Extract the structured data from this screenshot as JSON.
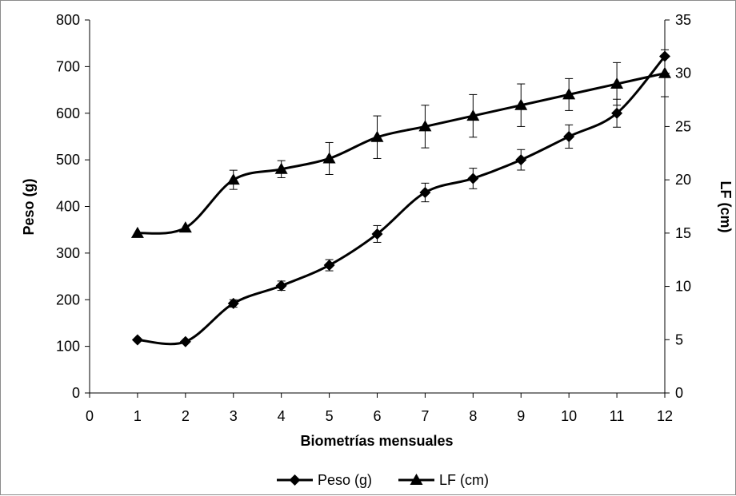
{
  "chart_data": {
    "type": "line",
    "xlabel": "Biometrías mensuales",
    "ylabel": "Peso (g)",
    "y2label": "LF (cm)",
    "xlim": [
      0,
      12
    ],
    "ylim": [
      0,
      800
    ],
    "y2lim": [
      0,
      35
    ],
    "x_ticks": [
      "0",
      "1",
      "2",
      "3",
      "4",
      "5",
      "6",
      "7",
      "8",
      "9",
      "10",
      "11",
      "12"
    ],
    "y_ticks": [
      "0",
      "100",
      "200",
      "300",
      "400",
      "500",
      "600",
      "700",
      "800"
    ],
    "y2_ticks": [
      "0",
      "5",
      "10",
      "15",
      "20",
      "25",
      "30",
      "35"
    ],
    "grid": false,
    "legend_position": "bottom",
    "series": [
      {
        "name": "Peso (g)",
        "axis": "left",
        "marker": "diamond",
        "x": [
          1,
          2,
          3,
          4,
          5,
          6,
          7,
          8,
          9,
          10,
          11,
          12
        ],
        "values": [
          114,
          110,
          192,
          230,
          274,
          341,
          430,
          460,
          500,
          550,
          600,
          722
        ],
        "error": [
          0,
          0,
          8,
          10,
          12,
          18,
          20,
          22,
          22,
          25,
          30,
          0
        ]
      },
      {
        "name": "LF (cm)",
        "axis": "right",
        "marker": "triangle",
        "x": [
          1,
          2,
          3,
          4,
          5,
          6,
          7,
          8,
          9,
          10,
          11,
          12
        ],
        "values": [
          15,
          15.5,
          20,
          21,
          22,
          24,
          25,
          26,
          27,
          28,
          29,
          30
        ],
        "error": [
          0,
          0,
          0.9,
          0.8,
          1.5,
          2.0,
          2.0,
          2.0,
          2.0,
          1.5,
          2.0,
          2.2
        ]
      }
    ],
    "colors": {
      "line": "#000000",
      "frame": "#8c8c8c"
    }
  }
}
